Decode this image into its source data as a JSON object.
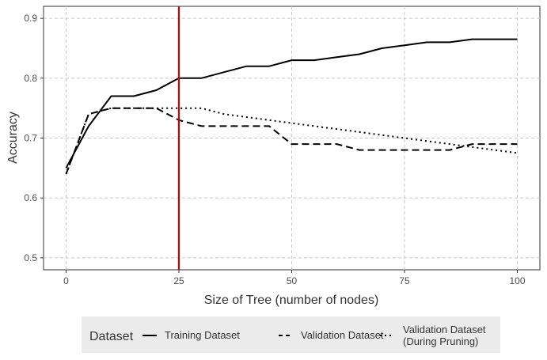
{
  "chart_data": {
    "type": "line",
    "title": "",
    "xlabel": "Size of Tree (number of nodes)",
    "ylabel": "Accuracy",
    "xlim": [
      -5,
      105
    ],
    "ylim": [
      0.48,
      0.92
    ],
    "x_ticks": [
      0,
      25,
      50,
      75,
      100
    ],
    "y_ticks": [
      0.5,
      0.6,
      0.7,
      0.8,
      0.9
    ],
    "x_tick_labels": [
      "0",
      "25",
      "50",
      "75",
      "100"
    ],
    "y_tick_labels": [
      "0.5",
      "0.6",
      "0.7",
      "0.8",
      "0.9"
    ],
    "grid": true,
    "legend_position": "bottom",
    "legend_title": "Dataset",
    "vline": {
      "x": 25,
      "color": "#cc0000"
    },
    "series": [
      {
        "name": "Training Dataset",
        "dash": "solid",
        "x": [
          0,
          5,
          10,
          15,
          20,
          25,
          30,
          35,
          40,
          45,
          50,
          55,
          60,
          65,
          70,
          75,
          80,
          85,
          90,
          95,
          100
        ],
        "y": [
          0.65,
          0.72,
          0.77,
          0.77,
          0.78,
          0.8,
          0.8,
          0.81,
          0.82,
          0.82,
          0.83,
          0.83,
          0.835,
          0.84,
          0.85,
          0.855,
          0.86,
          0.86,
          0.865,
          0.865,
          0.865
        ]
      },
      {
        "name": "Validation Dataset",
        "dash": "dashed",
        "x": [
          0,
          5,
          10,
          15,
          20,
          25,
          30,
          35,
          40,
          45,
          50,
          55,
          60,
          65,
          70,
          75,
          80,
          85,
          90,
          95,
          100
        ],
        "y": [
          0.64,
          0.74,
          0.75,
          0.75,
          0.75,
          0.73,
          0.72,
          0.72,
          0.72,
          0.72,
          0.69,
          0.69,
          0.69,
          0.68,
          0.68,
          0.68,
          0.68,
          0.68,
          0.69,
          0.69,
          0.69
        ]
      },
      {
        "name": "Validation Dataset\n(During Pruning)",
        "dash": "dotted",
        "x": [
          0,
          5,
          10,
          15,
          20,
          25,
          30,
          35,
          40,
          45,
          50,
          55,
          60,
          65,
          70,
          75,
          80,
          85,
          90,
          95,
          100
        ],
        "y": [
          0.64,
          0.74,
          0.75,
          0.75,
          0.75,
          0.75,
          0.75,
          0.74,
          0.735,
          0.73,
          0.725,
          0.72,
          0.715,
          0.71,
          0.705,
          0.7,
          0.695,
          0.69,
          0.685,
          0.68,
          0.675
        ]
      }
    ]
  }
}
